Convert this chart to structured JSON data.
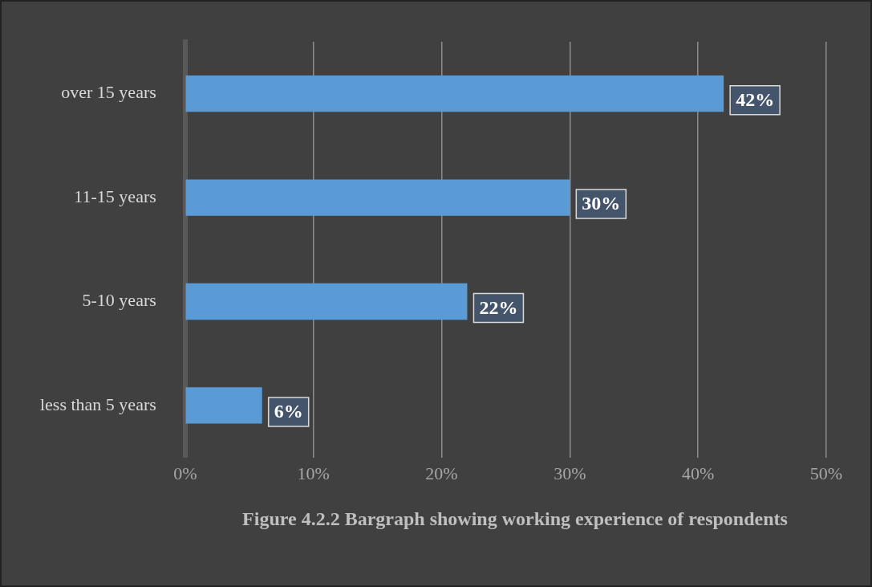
{
  "chart_data": {
    "type": "bar",
    "orientation": "horizontal",
    "title": "Figure 4.2.2 Bargraph showing working experience of respondents",
    "categories": [
      "over 15 years",
      "11-15 years",
      "5-10 years",
      "less than 5 years"
    ],
    "values": [
      42,
      30,
      22,
      6
    ],
    "value_labels": [
      "42%",
      "30%",
      "22%",
      "6%"
    ],
    "color": "#5b9bd5",
    "xlim": [
      0,
      50
    ],
    "xticks": [
      {
        "value": 0,
        "label": "0%"
      },
      {
        "value": 10,
        "label": "10%"
      },
      {
        "value": 20,
        "label": "20%"
      },
      {
        "value": 30,
        "label": "30%"
      },
      {
        "value": 40,
        "label": "40%"
      },
      {
        "value": 50,
        "label": "50%"
      }
    ],
    "grid": "x",
    "legend": false
  }
}
